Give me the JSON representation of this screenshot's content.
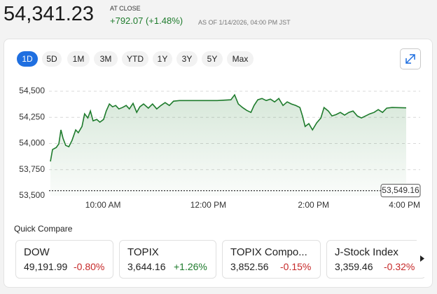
{
  "header": {
    "price": "54,341.23",
    "status": "AT CLOSE",
    "change": "+792.07 (+1.48%)",
    "as_of": "AS OF 1/14/2026, 04:00 PM JST"
  },
  "range_buttons": [
    "1D",
    "5D",
    "1M",
    "3M",
    "YTD",
    "1Y",
    "3Y",
    "5Y",
    "Max"
  ],
  "chart_data": {
    "type": "line",
    "x": [
      9.0,
      9.04,
      9.11,
      9.16,
      9.2,
      9.24,
      9.29,
      9.35,
      9.41,
      9.48,
      9.53,
      9.6,
      9.65,
      9.71,
      9.76,
      9.81,
      9.88,
      9.94,
      10.01,
      10.06,
      10.12,
      10.18,
      10.24,
      10.3,
      10.37,
      10.44,
      10.5,
      10.57,
      10.64,
      10.7,
      10.77,
      10.86,
      10.94,
      11.02,
      11.1,
      11.18,
      11.26,
      11.34,
      11.45,
      11.64,
      11.9,
      12.17,
      12.43,
      12.5,
      12.57,
      12.65,
      12.73,
      12.81,
      12.87,
      12.94,
      13.02,
      13.1,
      13.18,
      13.26,
      13.34,
      13.42,
      13.5,
      13.58,
      13.66,
      13.74,
      13.79,
      13.84,
      13.91,
      13.98,
      14.06,
      14.14,
      14.2,
      14.28,
      14.35,
      14.43,
      14.51,
      14.59,
      14.67,
      14.75,
      14.83,
      14.91,
      14.99,
      15.07,
      15.15,
      15.23,
      15.31,
      15.39,
      15.49,
      15.76
    ],
    "series": [
      {
        "color": "#1e7b2c",
        "values": [
          53828,
          53942,
          53962,
          53996,
          54130,
          54050,
          53982,
          53969,
          54029,
          54130,
          54103,
          54163,
          54284,
          54244,
          54311,
          54217,
          54230,
          54204,
          54230,
          54311,
          54378,
          54351,
          54364,
          54331,
          54344,
          54364,
          54331,
          54384,
          54297,
          54351,
          54378,
          54338,
          54378,
          54331,
          54364,
          54391,
          54364,
          54405,
          54411,
          54411,
          54411,
          54411,
          54418,
          54465,
          54378,
          54344,
          54317,
          54297,
          54364,
          54418,
          54431,
          54411,
          54425,
          54398,
          54431,
          54364,
          54398,
          54378,
          54364,
          54344,
          54264,
          54163,
          54190,
          54130,
          54197,
          54244,
          54344,
          54311,
          54264,
          54277,
          54297,
          54271,
          54297,
          54311,
          54264,
          54244,
          54264,
          54284,
          54297,
          54324,
          54297,
          54338,
          54344,
          54341
        ]
      }
    ],
    "xlim": [
      9,
      16
    ],
    "xticks": [
      {
        "value": 10,
        "label": "10:00 AM"
      },
      {
        "value": 12,
        "label": "12:00 PM"
      },
      {
        "value": 14,
        "label": "2:00 PM"
      },
      {
        "value": 16,
        "label": "4:00 PM"
      }
    ],
    "ylim": [
      53500,
      54500
    ],
    "yticks": [
      {
        "value": 53500,
        "label": "53,500"
      },
      {
        "value": 53750,
        "label": "53,750"
      },
      {
        "value": 54000,
        "label": "54,000"
      },
      {
        "value": 54250,
        "label": "54,250"
      },
      {
        "value": 54500,
        "label": "54,500"
      }
    ],
    "previous_close": {
      "value": 53549.16,
      "label": "53,549.16"
    },
    "grid": true
  },
  "quick_compare": {
    "title": "Quick Compare",
    "items": [
      {
        "name": "DOW",
        "price": "49,191.99",
        "change": "-0.80%",
        "direction": "down"
      },
      {
        "name": "TOPIX",
        "price": "3,644.16",
        "change": "+1.26%",
        "direction": "up"
      },
      {
        "name": "TOPIX Compo...",
        "price": "3,852.56",
        "change": "-0.15%",
        "direction": "down"
      },
      {
        "name": "J-Stock Index",
        "price": "3,359.46",
        "change": "-0.32%",
        "direction": "down"
      }
    ]
  }
}
